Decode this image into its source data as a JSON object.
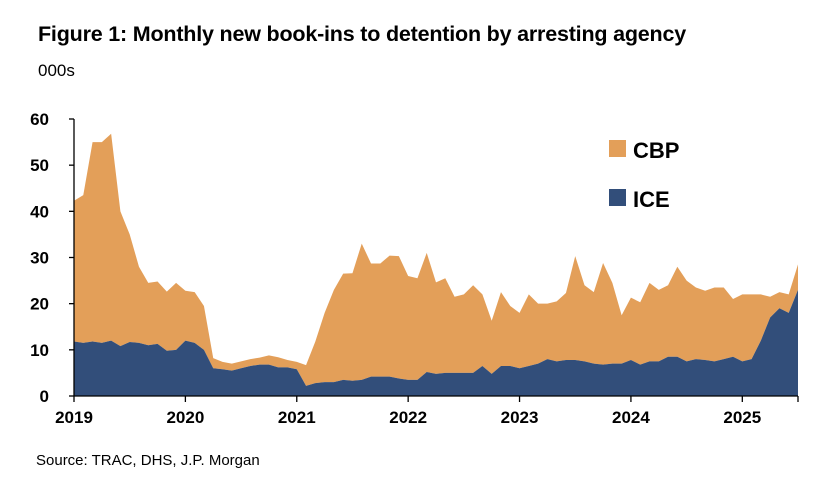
{
  "title": "Figure 1: Monthly new book-ins to detention by arresting agency",
  "unit_label": "000s",
  "source": "Source: TRAC, DHS, J.P. Morgan",
  "colors": {
    "cbp": "#E39F59",
    "ice": "#324E7A",
    "axis": "#000000"
  },
  "chart_data": {
    "type": "area",
    "stacked": true,
    "title": "Figure 1: Monthly new book-ins to detention by arresting agency",
    "ylabel": "000s",
    "ylim": [
      0,
      60
    ],
    "yticks": [
      0,
      10,
      20,
      30,
      40,
      50,
      60
    ],
    "xticks": [
      "2019",
      "2020",
      "2021",
      "2022",
      "2023",
      "2024",
      "2025"
    ],
    "x_start": "2019-01",
    "x_end": "2025-06",
    "legend": [
      "CBP",
      "ICE"
    ],
    "legend_position": "top-right",
    "series": [
      {
        "name": "ICE",
        "values": [
          11.8,
          11.5,
          11.8,
          11.5,
          12.0,
          10.8,
          11.7,
          11.5,
          11.0,
          11.3,
          9.8,
          10.0,
          12.0,
          11.5,
          10.0,
          6.0,
          5.8,
          5.5,
          6.0,
          6.5,
          6.8,
          6.8,
          6.2,
          6.2,
          5.8,
          2.2,
          2.8,
          3.0,
          3.0,
          3.5,
          3.3,
          3.5,
          4.2,
          4.2,
          4.2,
          3.8,
          3.5,
          3.5,
          5.2,
          4.8,
          5.0,
          5.0,
          5.0,
          5.0,
          6.5,
          4.8,
          6.5,
          6.5,
          6.0,
          6.5,
          7.0,
          8.0,
          7.5,
          7.8,
          7.8,
          7.5,
          7.0,
          6.8,
          7.0,
          7.0,
          7.8,
          6.8,
          7.5,
          7.5,
          8.5,
          8.5,
          7.5,
          8.0,
          7.8,
          7.5,
          8.0,
          8.5,
          7.5,
          8.0,
          12.0,
          17.0,
          19.0,
          18.0,
          23.0
        ]
      },
      {
        "name": "CBP",
        "values": [
          30.5,
          32.0,
          43.2,
          43.5,
          44.8,
          29.2,
          23.3,
          16.5,
          13.5,
          13.5,
          12.8,
          14.5,
          10.8,
          11.0,
          9.5,
          2.2,
          1.6,
          1.5,
          1.5,
          1.5,
          1.5,
          2.0,
          2.2,
          1.6,
          1.6,
          4.5,
          9.0,
          15.0,
          20.0,
          23.0,
          23.3,
          29.5,
          24.5,
          24.5,
          26.2,
          26.5,
          22.5,
          22.0,
          25.8,
          19.8,
          20.5,
          16.5,
          17.0,
          19.0,
          15.5,
          11.5,
          16.0,
          13.0,
          12.0,
          15.5,
          13.0,
          12.0,
          13.0,
          14.5,
          22.5,
          16.5,
          15.5,
          22.0,
          17.5,
          10.5,
          13.5,
          13.5,
          17.0,
          15.5,
          15.5,
          19.5,
          17.5,
          15.5,
          15.0,
          16.0,
          15.5,
          12.5,
          14.5,
          14.0,
          10.0,
          4.5,
          3.5,
          4.0,
          5.5
        ]
      }
    ]
  }
}
